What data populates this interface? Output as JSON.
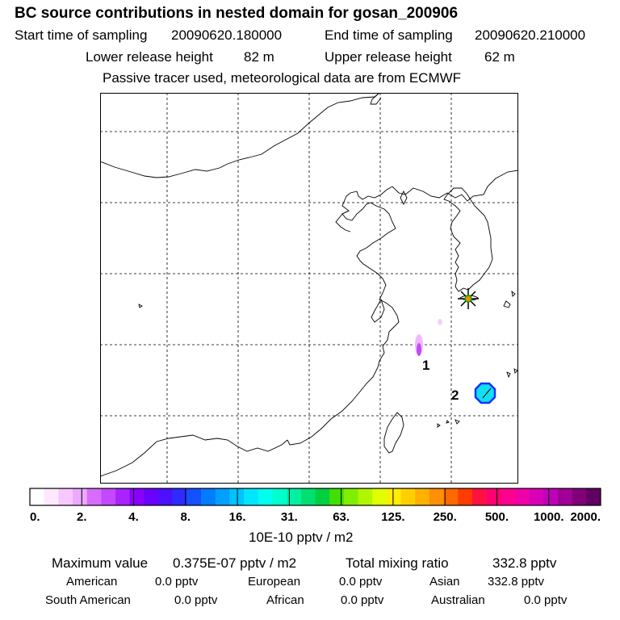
{
  "header": {
    "title": "BC  source contributions in nested domain for gosan_200906",
    "start_label": "Start time of sampling",
    "start_value": "20090620.180000",
    "end_label": "End time of sampling",
    "end_value": "20090620.210000",
    "lower_label": "Lower release height",
    "lower_value": "82 m",
    "upper_label": "Upper release height",
    "upper_value": "62 m",
    "note": "Passive tracer used, meteorological data are from ECMWF"
  },
  "chart_data": {
    "type": "heatmap",
    "title": "BC  source contributions in nested domain for gosan_200906",
    "colorbar": {
      "unit_label": "10E-10 pptv / m2",
      "tick_labels": [
        "0.",
        "2.",
        "4.",
        "8.",
        "16.",
        "31.",
        "63.",
        "125.",
        "250.",
        "500.",
        "1000.",
        "2000."
      ],
      "colors": [
        "#ffffff",
        "#fde8ff",
        "#f6c8ff",
        "#ecaaff",
        "#d86cff",
        "#c448ff",
        "#aa22ff",
        "#8a00ff",
        "#6a00ff",
        "#4a10ff",
        "#2c2cff",
        "#1450ff",
        "#007cff",
        "#00a0ff",
        "#00c4ff",
        "#00e6ff",
        "#00ffee",
        "#00ffcc",
        "#00f0a0",
        "#00e070",
        "#00d040",
        "#40e000",
        "#80ee00",
        "#b0f600",
        "#e0ff00",
        "#ffee00",
        "#ffd000",
        "#ffb000",
        "#ff9000",
        "#ff6800",
        "#ff3c00",
        "#ff1040",
        "#ff0070",
        "#ff0090",
        "#f000a8",
        "#d800b8",
        "#c000b8",
        "#a00098",
        "#800078",
        "#600060"
      ]
    },
    "markers": [
      {
        "label": "1",
        "description": "source region east of China coast"
      },
      {
        "label": "2",
        "description": "source region south of Korea"
      }
    ],
    "receptor": "gosan"
  },
  "stats": {
    "max_label": "Maximum value",
    "max_value": "0.375E-07 pptv / m2",
    "total_label": "Total mixing ratio",
    "total_value": "332.8 pptv",
    "regions": [
      {
        "name": "American",
        "value": "0.0 pptv"
      },
      {
        "name": "European",
        "value": "0.0 pptv"
      },
      {
        "name": "Asian",
        "value": "332.8 pptv"
      },
      {
        "name": "South American",
        "value": "0.0 pptv"
      },
      {
        "name": "African",
        "value": "0.0 pptv"
      },
      {
        "name": "Australian",
        "value": "0.0 pptv"
      }
    ]
  }
}
